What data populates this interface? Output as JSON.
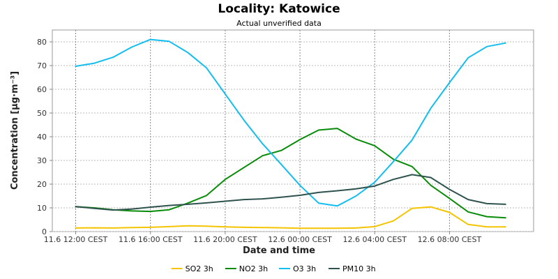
{
  "chart_data": {
    "type": "line",
    "title": "Locality: Katowice",
    "subtitle": "Actual unverified data",
    "xlabel": "Date and time",
    "ylabel": "Concentration [µg·m⁻³]",
    "ylim": [
      0,
      85
    ],
    "yticks": [
      0,
      10,
      20,
      30,
      40,
      50,
      60,
      70,
      80
    ],
    "grid": true,
    "legend_position": "bottom",
    "xticks": [
      {
        "label": "11.6 12:00 CEST",
        "x": "2024-06-11T12:00"
      },
      {
        "label": "11.6 16:00 CEST",
        "x": "2024-06-11T16:00"
      },
      {
        "label": "11.6 20:00 CEST",
        "x": "2024-06-11T20:00"
      },
      {
        "label": "12.6 00:00 CEST",
        "x": "2024-06-12T00:00"
      },
      {
        "label": "12.6 04:00 CEST",
        "x": "2024-06-12T04:00"
      },
      {
        "label": "12.6 08:00 CEST",
        "x": "2024-06-12T08:00"
      }
    ],
    "x": [
      "2024-06-11T12:00",
      "2024-06-11T13:00",
      "2024-06-11T14:00",
      "2024-06-11T15:00",
      "2024-06-11T16:00",
      "2024-06-11T17:00",
      "2024-06-11T18:00",
      "2024-06-11T19:00",
      "2024-06-11T20:00",
      "2024-06-11T21:00",
      "2024-06-11T22:00",
      "2024-06-11T23:00",
      "2024-06-12T00:00",
      "2024-06-12T01:00",
      "2024-06-12T02:00",
      "2024-06-12T03:00",
      "2024-06-12T04:00",
      "2024-06-12T05:00",
      "2024-06-12T06:00",
      "2024-06-12T07:00",
      "2024-06-12T08:00",
      "2024-06-12T09:00",
      "2024-06-12T10:00",
      "2024-06-12T11:00"
    ],
    "series": [
      {
        "name": "SO2 3h",
        "color": "#f5c400",
        "values": [
          1.5,
          1.6,
          1.5,
          1.7,
          1.8,
          2.1,
          2.4,
          2.3,
          2.0,
          1.8,
          1.7,
          1.6,
          1.4,
          1.4,
          1.4,
          1.5,
          2.1,
          4.5,
          9.8,
          10.4,
          8.1,
          3.0,
          2.0,
          2.0
        ]
      },
      {
        "name": "NO2 3h",
        "color": "#088c08",
        "values": [
          10.5,
          10.0,
          9.2,
          8.7,
          8.5,
          9.2,
          12.0,
          15.2,
          22.0,
          27.0,
          32.0,
          34.2,
          38.8,
          42.8,
          43.5,
          39.0,
          36.2,
          30.5,
          27.4,
          19.5,
          14.0,
          8.3,
          6.3,
          5.8
        ]
      },
      {
        "name": "O3 3h",
        "color": "#12bdef",
        "values": [
          69.7,
          71.0,
          73.5,
          77.8,
          81.0,
          80.2,
          75.5,
          69.0,
          58.0,
          47.0,
          37.0,
          28.3,
          19.5,
          12.0,
          10.8,
          15.0,
          20.8,
          29.5,
          38.6,
          52.0,
          62.8,
          73.3,
          78.0,
          79.5
        ]
      },
      {
        "name": "PM10 3h",
        "color": "#2e524e",
        "values": [
          10.5,
          9.8,
          9.1,
          9.5,
          10.3,
          11.0,
          11.5,
          12.1,
          12.8,
          13.5,
          13.8,
          14.5,
          15.3,
          16.5,
          17.2,
          18.0,
          19.2,
          22.0,
          24.0,
          22.8,
          17.8,
          13.5,
          11.8,
          11.5
        ]
      }
    ]
  }
}
